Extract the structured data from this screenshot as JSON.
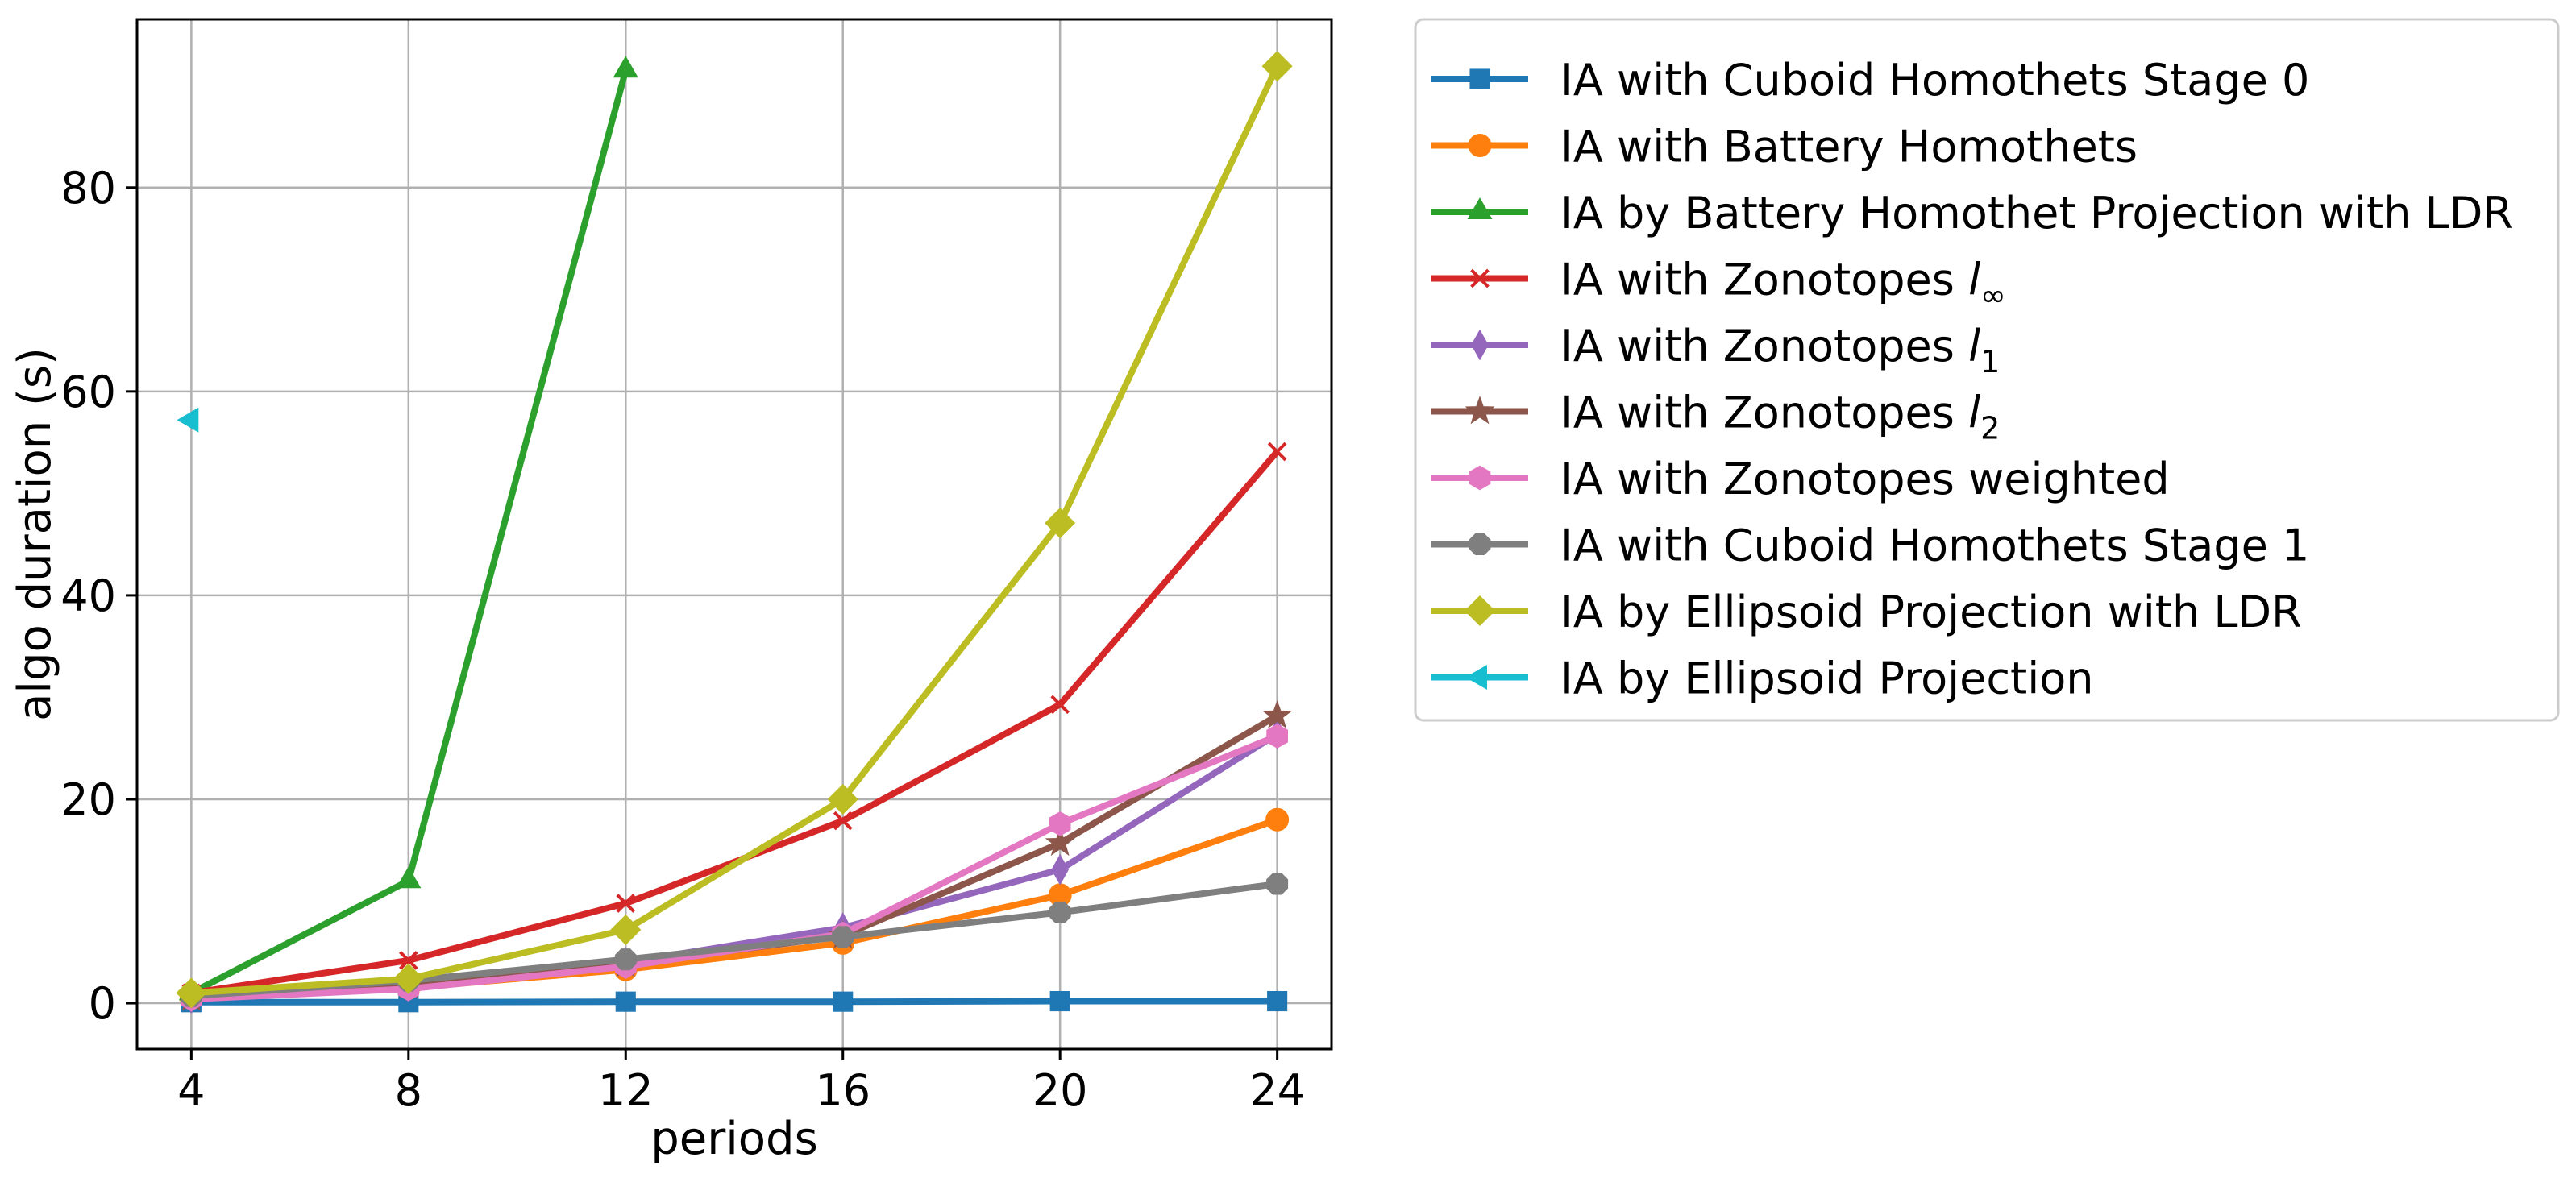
{
  "chart_data": {
    "type": "line",
    "title": "",
    "xlabel": "periods",
    "ylabel": "algo duration (s)",
    "x": [
      4,
      8,
      12,
      16,
      20,
      24
    ],
    "xticks": [
      "4",
      "8",
      "12",
      "16",
      "20",
      "24"
    ],
    "yticks": [
      "0",
      "20",
      "40",
      "60",
      "80"
    ],
    "xlim": [
      3,
      25
    ],
    "ylim": [
      -4.5,
      96.5
    ],
    "grid": true,
    "legend_position": "outside-right-top",
    "series": [
      {
        "name": "IA with Cuboid Homothets Stage 0",
        "legend_text": "IA with Cuboid Homothets Stage 0",
        "color": "#1f77b4",
        "marker": "square",
        "x": [
          4,
          8,
          12,
          16,
          20,
          24
        ],
        "values": [
          0.1,
          0.1,
          0.15,
          0.15,
          0.2,
          0.2
        ]
      },
      {
        "name": "IA with Battery Homothets",
        "legend_text": "IA with Battery Homothets",
        "color": "#ff7f0e",
        "marker": "circle",
        "x": [
          4,
          8,
          12,
          16,
          20,
          24
        ],
        "values": [
          0.5,
          1.5,
          3.3,
          5.9,
          10.6,
          18.0
        ]
      },
      {
        "name": "IA by Battery Homothet Projection with LDR",
        "legend_text": "IA by Battery Homothet Projection with LDR",
        "color": "#2ca02c",
        "marker": "triangle-up",
        "x": [
          4,
          8,
          12
        ],
        "values": [
          1.0,
          12.0,
          91.5
        ]
      },
      {
        "name": "IA with Zonotopes l∞",
        "legend_prefix": "IA with Zonotopes ",
        "legend_math": "l",
        "legend_sub": "∞",
        "color": "#d62728",
        "marker": "x",
        "x": [
          4,
          8,
          12,
          16,
          20,
          24
        ],
        "values": [
          1.0,
          4.2,
          9.8,
          17.9,
          29.3,
          54.1
        ]
      },
      {
        "name": "IA with Zonotopes l1",
        "legend_prefix": "IA with Zonotopes ",
        "legend_math": "l",
        "legend_sub": "1",
        "color": "#9467bd",
        "marker": "thin-diamond",
        "x": [
          4,
          8,
          12,
          16,
          20,
          24
        ],
        "values": [
          0.5,
          1.8,
          4.0,
          7.4,
          13.1,
          26.4
        ]
      },
      {
        "name": "IA with Zonotopes l2",
        "legend_prefix": "IA with Zonotopes ",
        "legend_math": "l",
        "legend_sub": "2",
        "color": "#8c564b",
        "marker": "star",
        "x": [
          4,
          8,
          12,
          16,
          20,
          24
        ],
        "values": [
          0.5,
          1.7,
          3.8,
          6.6,
          15.7,
          28.2
        ]
      },
      {
        "name": "IA with Zonotopes weighted",
        "legend_text": "IA with Zonotopes weighted",
        "color": "#e377c2",
        "marker": "hexagon",
        "x": [
          4,
          8,
          12,
          16,
          20,
          24
        ],
        "values": [
          0.4,
          1.4,
          3.6,
          6.8,
          17.6,
          26.2
        ]
      },
      {
        "name": "IA with Cuboid Homothets Stage 1",
        "legend_text": "IA with Cuboid Homothets Stage 1",
        "color": "#7f7f7f",
        "marker": "pentagon",
        "x": [
          4,
          8,
          12,
          16,
          20,
          24
        ],
        "values": [
          0.7,
          2.2,
          4.3,
          6.5,
          8.9,
          11.7
        ]
      },
      {
        "name": "IA by Ellipsoid Projection with LDR",
        "legend_text": "IA by Ellipsoid Projection with LDR",
        "color": "#bcbd22",
        "marker": "diamond",
        "x": [
          4,
          8,
          12,
          16,
          20,
          24
        ],
        "values": [
          1.0,
          2.4,
          7.2,
          20.0,
          47.1,
          91.9
        ]
      },
      {
        "name": "IA by Ellipsoid Projection",
        "legend_text": "IA by Ellipsoid Projection",
        "color": "#17becf",
        "marker": "triangle-left",
        "x": [
          4
        ],
        "values": [
          57.2
        ]
      }
    ]
  }
}
